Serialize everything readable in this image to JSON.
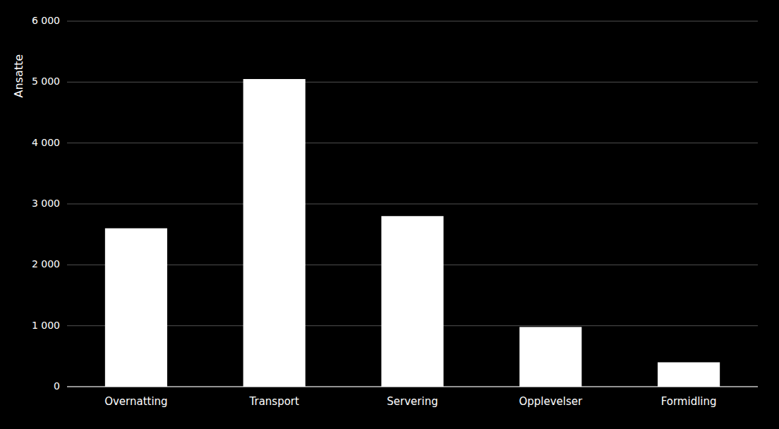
{
  "chart_data": {
    "type": "bar",
    "ylabel": "Ansatte",
    "categories": [
      "Overnatting",
      "Transport",
      "Servering",
      "Opplevelser",
      "Formidling"
    ],
    "values": [
      2600,
      5050,
      2800,
      980,
      400
    ],
    "color": "#ffffff",
    "ylim": [
      0,
      6000
    ],
    "yticks": [
      0,
      {
        "value": 1000,
        "label": "1 000"
      },
      {
        "value": 2000,
        "label": "2 000"
      },
      {
        "value": 3000,
        "label": "3 000"
      },
      {
        "value": 4000,
        "label": "4 000"
      },
      {
        "value": 5000,
        "label": "5 000"
      },
      {
        "value": 6000,
        "label": "6 000"
      }
    ],
    "grid": true
  }
}
